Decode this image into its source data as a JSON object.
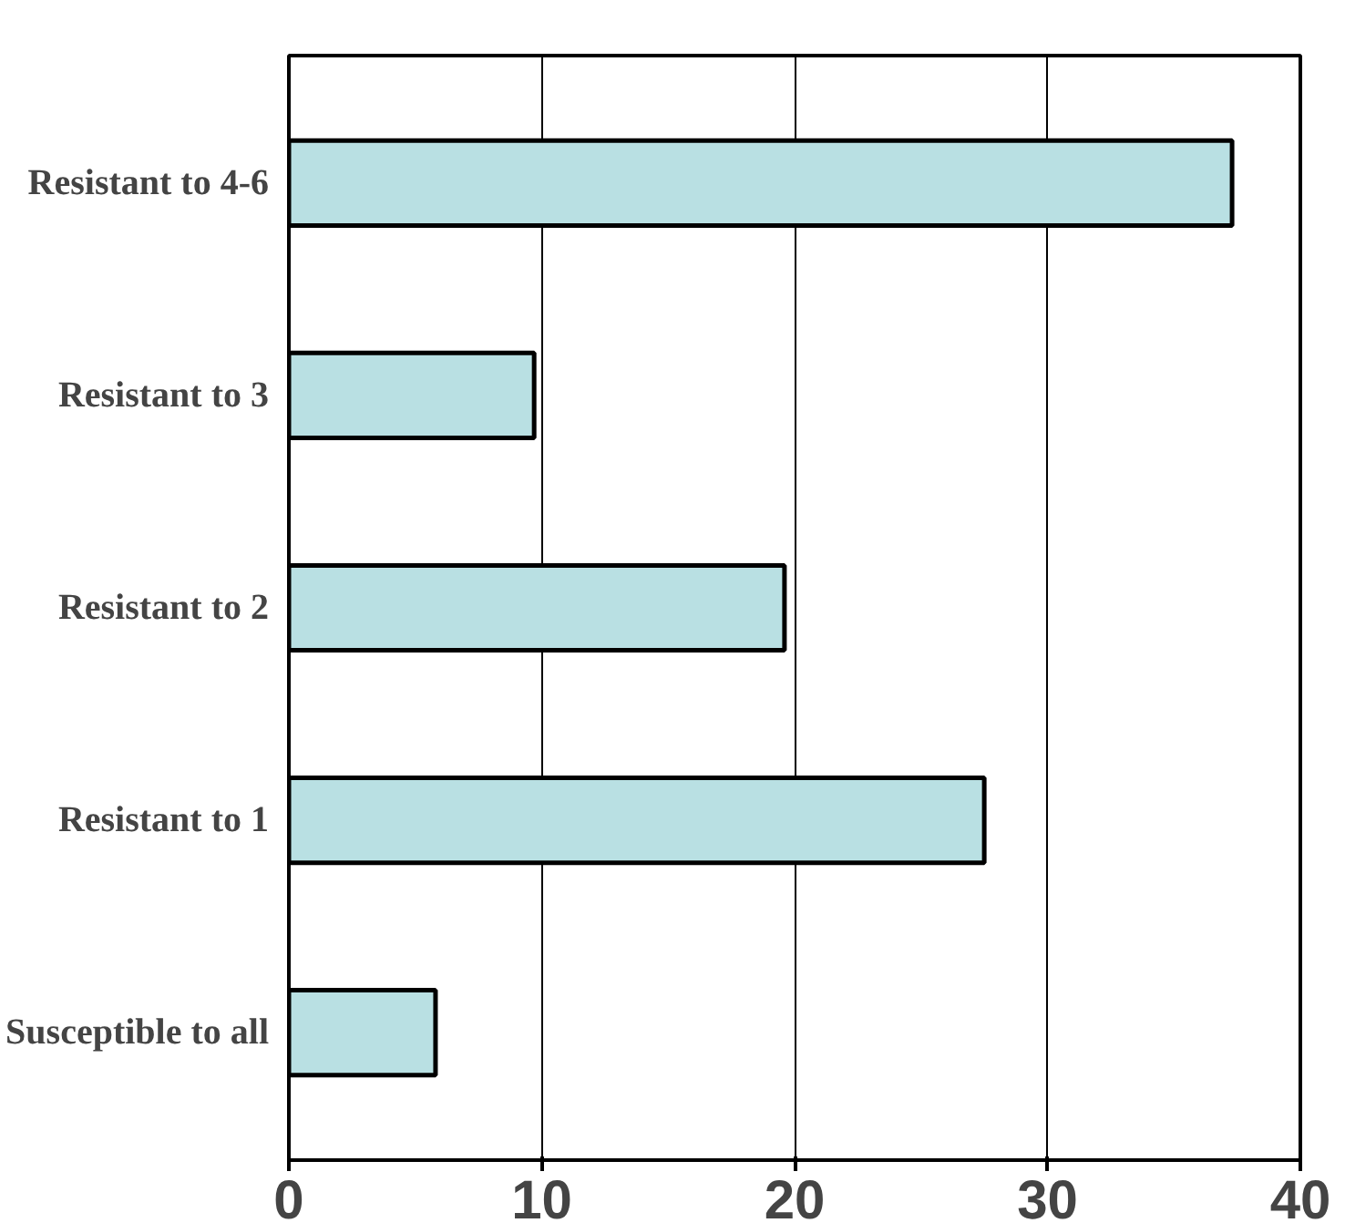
{
  "chart_data": {
    "type": "bar",
    "orientation": "horizontal",
    "categories": [
      "Resistant to 4-6",
      "Resistant to 3",
      "Resistant to 2",
      "Resistant to 1",
      "Susceptible to all"
    ],
    "values": [
      37.3,
      9.7,
      19.6,
      27.5,
      5.8
    ],
    "color": "#b9e0e3",
    "xlim": [
      0,
      40
    ],
    "xticks": [
      0,
      10,
      20,
      30,
      40
    ],
    "grid": "x"
  }
}
